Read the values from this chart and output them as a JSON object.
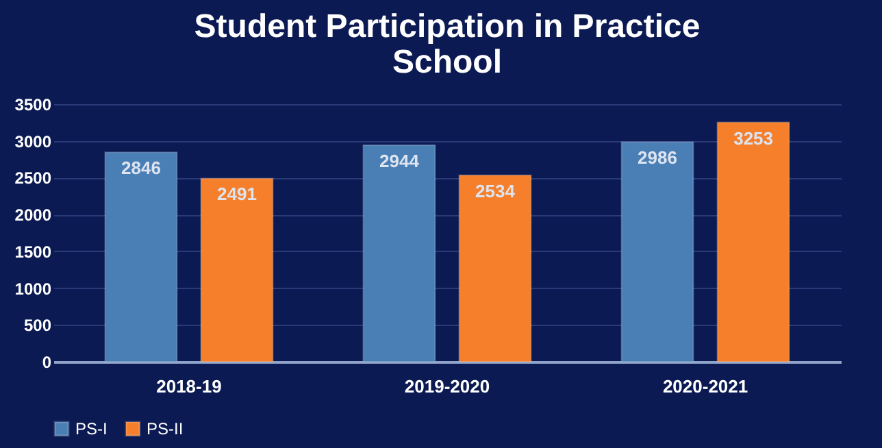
{
  "chart_data": {
    "type": "bar",
    "title": "Student Participation in Practice School",
    "categories": [
      "2018-19",
      "2019-2020",
      "2020-2021"
    ],
    "series": [
      {
        "name": "PS-I",
        "color": "#4a7fb5",
        "values": [
          2846,
          2944,
          2986
        ]
      },
      {
        "name": "PS-II",
        "color": "#f57f2a",
        "values": [
          2491,
          2534,
          3253
        ]
      }
    ],
    "ylim": [
      0,
      3500
    ],
    "yticks": [
      0,
      500,
      1000,
      1500,
      2000,
      2500,
      3000,
      3500
    ],
    "grid": "y",
    "legend": "bottom",
    "data_labels": true
  }
}
